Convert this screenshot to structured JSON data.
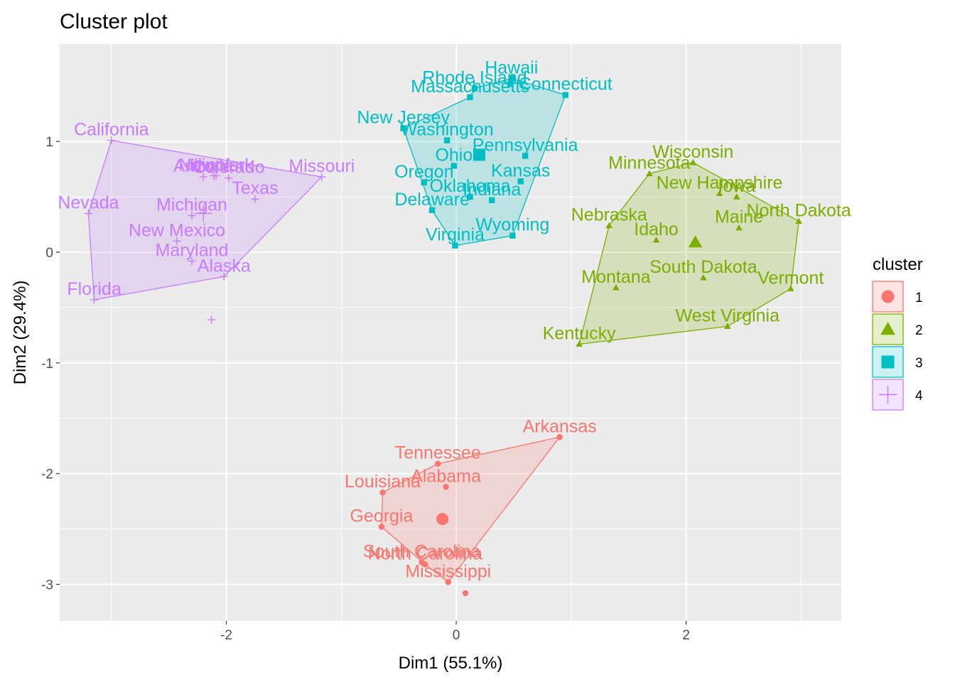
{
  "chart_data": {
    "type": "scatter",
    "title": "Cluster plot",
    "xlabel": "Dim1 (55.1%)",
    "ylabel": "Dim2 (29.4%)",
    "xlim": [
      -3.45,
      3.35
    ],
    "ylim": [
      -3.33,
      1.88
    ],
    "x_ticks": [
      -2,
      0,
      2
    ],
    "y_ticks": [
      -3,
      -2,
      -1,
      0,
      1
    ],
    "grid": true,
    "legend": {
      "title": "cluster",
      "position": "right",
      "entries": [
        "1",
        "2",
        "3",
        "4"
      ]
    },
    "colors": {
      "1": "#F8766D",
      "2": "#7CAE00",
      "3": "#00BFC4",
      "4": "#C77CFF"
    },
    "shapes": {
      "1": "circle",
      "2": "triangle",
      "3": "square",
      "4": "plus"
    },
    "series": [
      {
        "name": "1",
        "centroid": [
          -0.12,
          -2.41
        ],
        "hull": [
          "Arkansas",
          "Mississippi",
          "North Carolina",
          "Georgia",
          "Louisiana",
          "Tennessee"
        ],
        "points": [
          {
            "label": "Arkansas",
            "x": 0.9,
            "y": -1.67
          },
          {
            "label": "Tennessee",
            "x": -0.16,
            "y": -1.91
          },
          {
            "label": "Alabama",
            "x": -0.09,
            "y": -2.12
          },
          {
            "label": "Louisiana",
            "x": -0.64,
            "y": -2.17
          },
          {
            "label": "Georgia",
            "x": -0.65,
            "y": -2.48
          },
          {
            "label": "South Carolina",
            "x": -0.3,
            "y": -2.8
          },
          {
            "label": "North Carolina",
            "x": -0.27,
            "y": -2.82
          },
          {
            "label": "Mississippi",
            "x": -0.07,
            "y": -2.98
          },
          {
            "label": "Mississippi",
            "x": 0.08,
            "y": -3.08,
            "hidden_label": true
          }
        ]
      },
      {
        "name": "2",
        "centroid": [
          2.08,
          0.09
        ],
        "hull": [
          "North Dakota",
          "Vermont",
          "West Virginia",
          "Kentucky",
          "Nebraska",
          "Minnesota",
          "Wisconsin"
        ],
        "points": [
          {
            "label": "Wisconsin",
            "x": 2.06,
            "y": 0.81
          },
          {
            "label": "Minnesota",
            "x": 1.68,
            "y": 0.71
          },
          {
            "label": "New Hampshire",
            "x": 2.29,
            "y": 0.53
          },
          {
            "label": "Iowa",
            "x": 2.44,
            "y": 0.5
          },
          {
            "label": "North Dakota",
            "x": 2.98,
            "y": 0.28
          },
          {
            "label": "Nebraska",
            "x": 1.33,
            "y": 0.24
          },
          {
            "label": "Maine",
            "x": 2.46,
            "y": 0.22
          },
          {
            "label": "Idaho",
            "x": 1.74,
            "y": 0.11
          },
          {
            "label": "South Dakota",
            "x": 2.15,
            "y": -0.23
          },
          {
            "label": "Montana",
            "x": 1.39,
            "y": -0.32
          },
          {
            "label": "Vermont",
            "x": 2.91,
            "y": -0.33
          },
          {
            "label": "West Virginia",
            "x": 2.36,
            "y": -0.67
          },
          {
            "label": "Kentucky",
            "x": 1.07,
            "y": -0.83
          }
        ]
      },
      {
        "name": "3",
        "centroid": [
          0.2,
          0.88
        ],
        "hull": [
          "Connecticut",
          "Wyoming",
          "Virginia",
          "Delaware",
          "New Jersey",
          "Massachusetts",
          "Rhode Island",
          "Hawaii"
        ],
        "points": [
          {
            "label": "Hawaii",
            "x": 0.48,
            "y": 1.57
          },
          {
            "label": "Rhode Island",
            "x": 0.16,
            "y": 1.48
          },
          {
            "label": "Connecticut",
            "x": 0.95,
            "y": 1.42
          },
          {
            "label": "Massachusetts",
            "x": 0.12,
            "y": 1.4
          },
          {
            "label": "Hawaii",
            "x": 0.47,
            "y": 1.52,
            "hidden_label": true
          },
          {
            "label": "New Jersey",
            "x": -0.46,
            "y": 1.12
          },
          {
            "label": "Washington",
            "x": -0.08,
            "y": 1.01
          },
          {
            "label": "Pennsylvania",
            "x": 0.6,
            "y": 0.87
          },
          {
            "label": "Ohio",
            "x": -0.02,
            "y": 0.78
          },
          {
            "label": "Oregon",
            "x": -0.28,
            "y": 0.63
          },
          {
            "label": "Kansas",
            "x": 0.56,
            "y": 0.64
          },
          {
            "label": "Oklahoma",
            "x": 0.12,
            "y": 0.5
          },
          {
            "label": "Indiana",
            "x": 0.31,
            "y": 0.47
          },
          {
            "label": "Delaware",
            "x": -0.21,
            "y": 0.38
          },
          {
            "label": "Wyoming",
            "x": 0.49,
            "y": 0.15
          },
          {
            "label": "Virginia",
            "x": -0.01,
            "y": 0.06
          }
        ]
      },
      {
        "name": "4",
        "centroid": [
          -2.2,
          0.35
        ],
        "hull": [
          "California",
          "Missouri",
          "Alaska",
          "Florida",
          "Nevada"
        ],
        "points": [
          {
            "label": "California",
            "x": -3.0,
            "y": 1.01
          },
          {
            "label": "Colorado",
            "x": -1.98,
            "y": 0.67
          },
          {
            "label": "Arizona",
            "x": -2.2,
            "y": 0.68
          },
          {
            "label": "New York",
            "x": -2.09,
            "y": 0.69
          },
          {
            "label": "Illinois",
            "x": -2.11,
            "y": 0.69
          },
          {
            "label": "Missouri",
            "x": -1.17,
            "y": 0.68
          },
          {
            "label": "Texas",
            "x": -1.75,
            "y": 0.48
          },
          {
            "label": "Nevada",
            "x": -3.2,
            "y": 0.35
          },
          {
            "label": "Michigan",
            "x": -2.3,
            "y": 0.33
          },
          {
            "label": "New Mexico",
            "x": -2.43,
            "y": 0.1
          },
          {
            "label": "Maryland",
            "x": -2.3,
            "y": -0.08
          },
          {
            "label": "Alaska",
            "x": -2.02,
            "y": -0.22
          },
          {
            "label": "Florida",
            "x": -3.15,
            "y": -0.43
          },
          {
            "label": "Alaska",
            "x": -2.13,
            "y": -0.61,
            "hidden_label": true
          }
        ]
      }
    ]
  }
}
